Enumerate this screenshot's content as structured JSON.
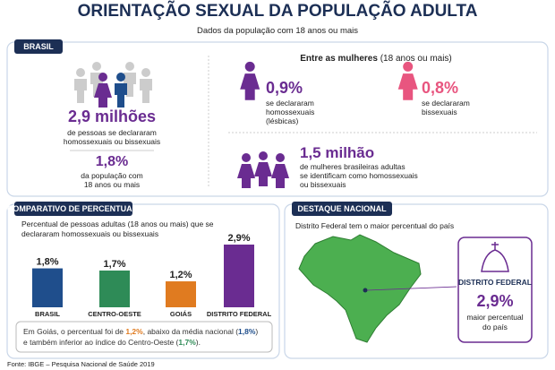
{
  "header": {
    "title": "ORIENTAÇÃO SEXUAL DA POPULAÇÃO ADULTA",
    "subtitle": "Dados da população com 18 anos ou mais"
  },
  "brasil": {
    "tag": "BRASIL",
    "total": "2,9 milhões",
    "total_text": [
      "de pessoas se declararam",
      "homossexuais ou bissexuais"
    ],
    "share": "1,8%",
    "share_text": [
      "da população com",
      "18 anos ou mais"
    ]
  },
  "women": {
    "heading": "Entre as mulheres",
    "heading_note": "(18 anos ou mais)",
    "lesbian": {
      "value": "0,9%",
      "text": [
        "se declararam",
        "homossexuais",
        "(lésbicas)"
      ]
    },
    "bisexual": {
      "value": "0,8%",
      "text": [
        "se declararam",
        "bissexuais"
      ]
    },
    "total": {
      "value": "1,5 milhão",
      "text": [
        "de mulheres brasileiras adultas",
        "se identificam como homossexuais",
        "ou bissexuais"
      ]
    }
  },
  "comparison": {
    "tag": "COMPARATIVO DE PERCENTUAIS",
    "chart_data": {
      "type": "bar",
      "title": [
        "Percentual de pessoas adultas (18 anos ou mais) que se",
        "declararam homossexuais ou bissexuais"
      ],
      "categories": [
        "BRASIL",
        "CENTRO-OESTE",
        "GOIÁS",
        "DISTRITO FEDERAL"
      ],
      "values": [
        1.8,
        1.7,
        1.2,
        2.9
      ],
      "value_labels": [
        "1,8%",
        "1,7%",
        "1,2%",
        "2,9%"
      ],
      "colors": [
        "#1f4e8c",
        "#2e8b57",
        "#e07b20",
        "#6a2c91"
      ]
    },
    "note": [
      [
        {
          "text": "Em Goiás, o percentual foi de ",
          "color": "#333333"
        },
        {
          "text": "1,2%",
          "color": "#e07b20"
        },
        {
          "text": ", abaixo da média nacional (",
          "color": "#333333"
        },
        {
          "text": "1,8%",
          "color": "#1f4e8c"
        },
        {
          "text": ")",
          "color": "#333333"
        }
      ],
      [
        {
          "text": "e também inferior ao índice do Centro-Oeste (",
          "color": "#333333"
        },
        {
          "text": "1,7%",
          "color": "#2e8b57"
        },
        {
          "text": ").",
          "color": "#333333"
        }
      ]
    ]
  },
  "highlight": {
    "tag": "DESTAQUE NACIONAL",
    "text": "Distrito Federal tem o maior percentual do país",
    "card": {
      "name": "DISTRITO FEDERAL",
      "value": "2,9%",
      "text": [
        "maior percentual",
        "do país"
      ]
    }
  },
  "source": "Fonte: IBGE – Pesquisa Nacional de Saúde 2019"
}
